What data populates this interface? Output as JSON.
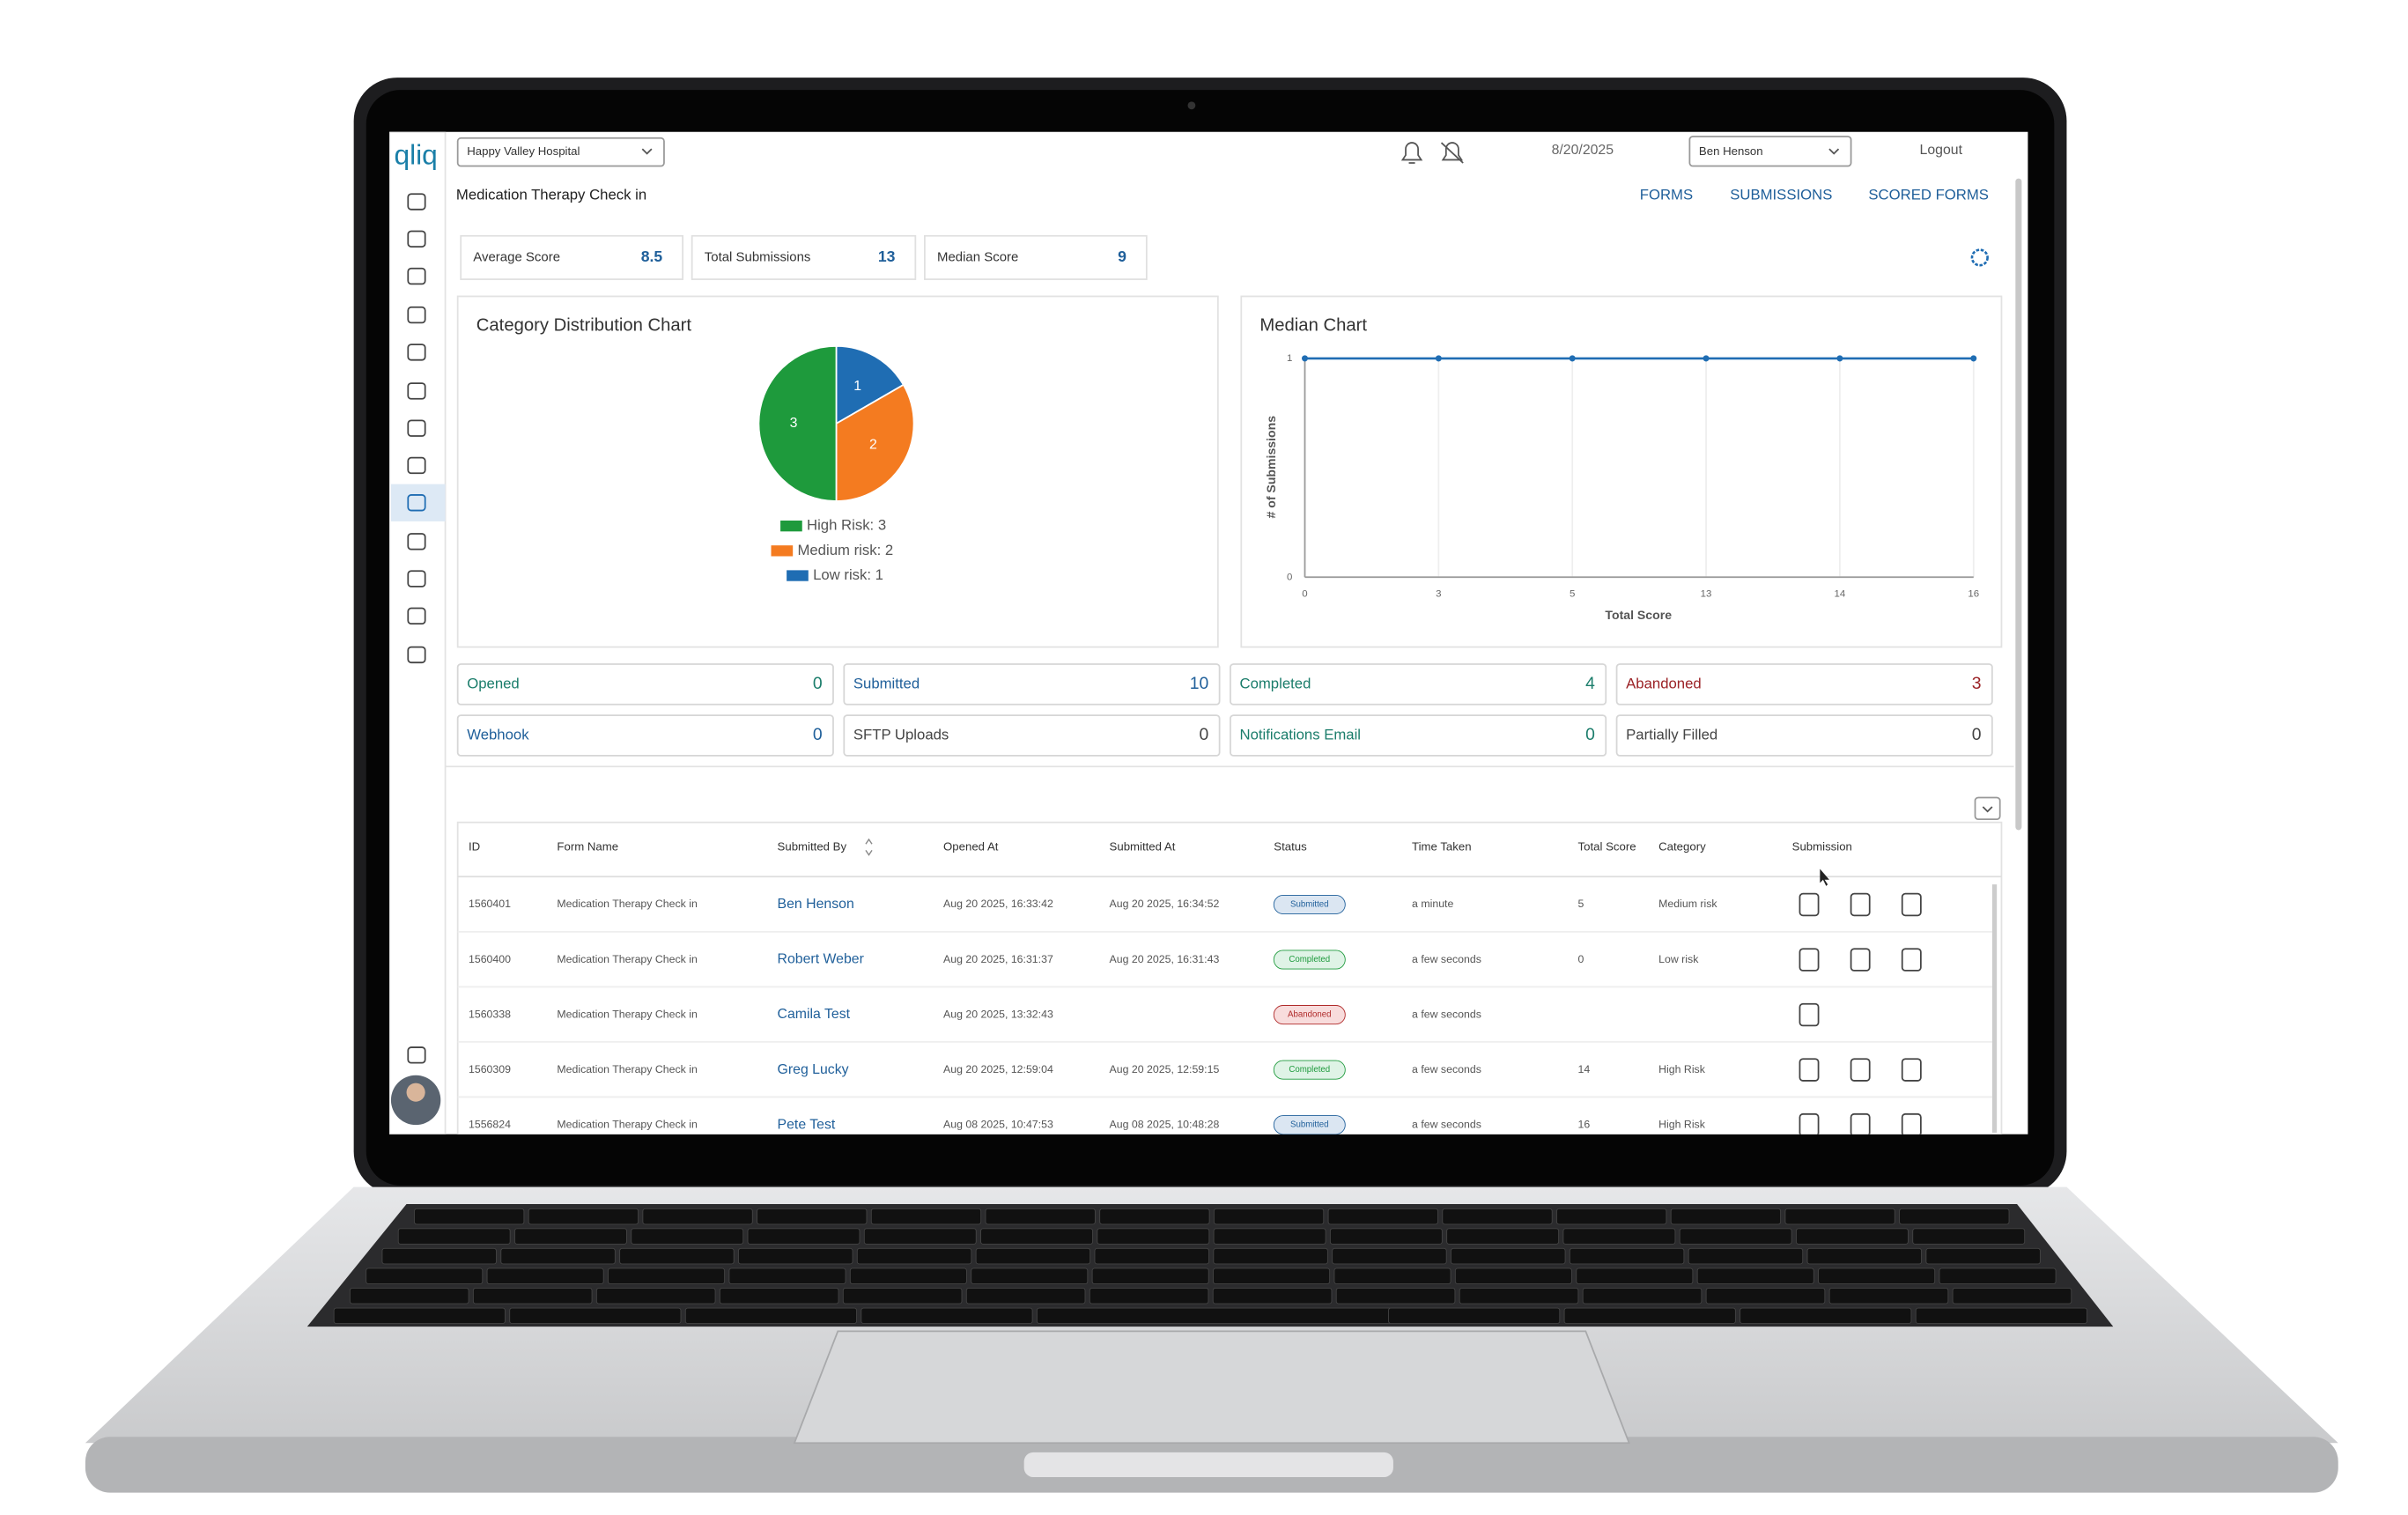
{
  "app": {
    "logo": "qliq",
    "hospital": "Happy Valley Hospital",
    "date": "8/20/2025",
    "user": "Ben Henson",
    "logout": "Logout"
  },
  "page_title": "Medication Therapy Check in",
  "nav": [
    "FORMS",
    "SUBMISSIONS",
    "SCORED FORMS"
  ],
  "stats": [
    {
      "label": "Average Score",
      "value": 8.5
    },
    {
      "label": "Total Submissions",
      "value": 13
    },
    {
      "label": "Median Score",
      "value": 9
    }
  ],
  "category_chart": {
    "type": "pie",
    "title": "Category Distribution Chart",
    "series": [
      {
        "name": "High Risk: 3",
        "value": 3,
        "color": "#1e9a3c"
      },
      {
        "name": "Medium risk: 2",
        "value": 2,
        "color": "#f47b20"
      },
      {
        "name": "Low risk: 1",
        "value": 1,
        "color": "#1f6db3"
      }
    ]
  },
  "median_chart": {
    "type": "line",
    "title": "Median Chart",
    "x_label": "Total Score",
    "y_label": "# of Submissions",
    "categories": [
      "0",
      "3",
      "5",
      "13",
      "14",
      "16"
    ],
    "values": [
      1,
      1,
      1,
      1,
      1,
      1
    ],
    "ylim": [
      0,
      1
    ],
    "yticks": [
      0,
      1
    ],
    "color": "#1f6db3"
  },
  "counters": [
    {
      "label": "Opened",
      "value": 0,
      "color": "#1b7d6b"
    },
    {
      "label": "Submitted",
      "value": 10,
      "color": "#1f5f9a"
    },
    {
      "label": "Completed",
      "value": 4,
      "color": "#1b7d6b"
    },
    {
      "label": "Abandoned",
      "value": 3,
      "color": "#9b2226"
    },
    {
      "label": "Webhook",
      "value": 0,
      "color": "#1f5f9a"
    },
    {
      "label": "SFTP Uploads",
      "value": 0,
      "color": "#444444"
    },
    {
      "label": "Notifications Email",
      "value": 0,
      "color": "#1b7d6b"
    },
    {
      "label": "Partially Filled",
      "value": 0,
      "color": "#444444"
    }
  ],
  "table": {
    "headers": [
      "ID",
      "Form Name",
      "Submitted By",
      "Opened At",
      "Submitted At",
      "Status",
      "Time Taken",
      "Total Score",
      "Category",
      "Submission"
    ],
    "rows": [
      [
        "1560401",
        "Medication Therapy Check in",
        "Ben Henson",
        "Aug 20 2025, 16:33:42",
        "Aug 20 2025, 16:34:52",
        "Submitted",
        "a minute",
        5,
        "Medium risk"
      ],
      [
        "1560400",
        "Medication Therapy Check in",
        "Robert Weber",
        "Aug 20 2025, 16:31:37",
        "Aug 20 2025, 16:31:43",
        "Completed",
        "a few seconds",
        0,
        "Low risk"
      ],
      [
        "1560338",
        "Medication Therapy Check in",
        "Camila Test",
        "Aug 20 2025, 13:32:43",
        null,
        "Abandoned",
        "a few seconds",
        null,
        null
      ],
      [
        "1560309",
        "Medication Therapy Check in",
        "Greg Lucky",
        "Aug 20 2025, 12:59:04",
        "Aug 20 2025, 12:59:15",
        "Completed",
        "a few seconds",
        14,
        "High Risk"
      ],
      [
        "1556824",
        "Medication Therapy Check in",
        "Pete Test",
        "Aug 08 2025, 10:47:53",
        "Aug 08 2025, 10:48:28",
        "Submitted",
        "a few seconds",
        16,
        "High Risk"
      ]
    ]
  }
}
